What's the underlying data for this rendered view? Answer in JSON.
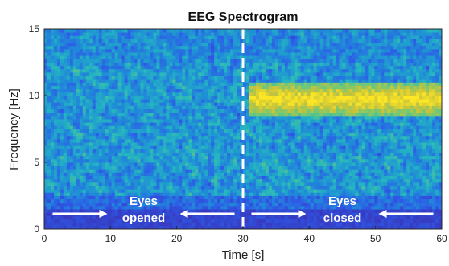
{
  "chart_data": {
    "type": "heatmap",
    "title": "EEG Spectrogram",
    "xlabel": "Time [s]",
    "ylabel": "Frequency [Hz]",
    "xlim": [
      0,
      60
    ],
    "ylim": [
      0,
      15
    ],
    "x_ticks": [
      "0",
      "10",
      "20",
      "30",
      "40",
      "50",
      "60"
    ],
    "y_ticks": [
      "0",
      "5",
      "10",
      "15"
    ],
    "colormap": [
      "#3e26a8",
      "#2d5be8",
      "#1f8fd6",
      "#25b6c1",
      "#6cc87a",
      "#c8c33a",
      "#fde725"
    ],
    "marker_time": 30,
    "marker_color": "#ffffff",
    "alpha_band_hz": [
      8.5,
      11
    ],
    "annotations": [
      {
        "id": "eyes-opened",
        "line1": "Eyes",
        "line2": "opened",
        "x": 15
      },
      {
        "id": "eyes-closed",
        "line1": "Eyes",
        "line2": "closed",
        "x": 45
      }
    ]
  }
}
